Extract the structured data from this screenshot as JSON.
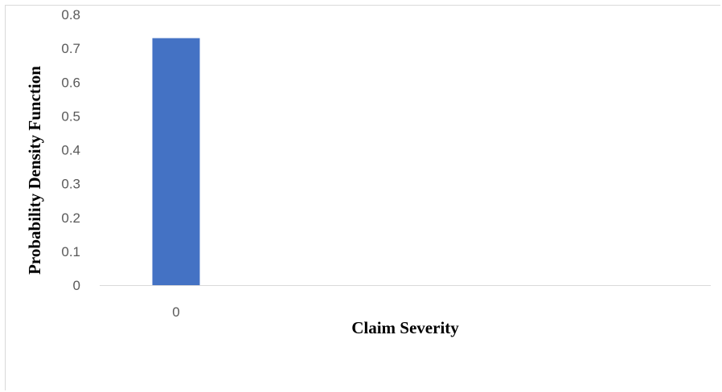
{
  "chart_data": {
    "type": "bar",
    "title": "",
    "xlabel": "Claim Severity",
    "ylabel": "Probability Density Function",
    "categories": [
      "0"
    ],
    "values": [
      0.73
    ],
    "ylim": [
      0,
      0.8
    ],
    "yticks": [
      "0",
      "0.1",
      "0.2",
      "0.3",
      "0.4",
      "0.5",
      "0.6",
      "0.7",
      "0.8"
    ],
    "grid": false,
    "legend": "none",
    "bar_color": "#4472C4",
    "axis_color": "#d9d9d9"
  }
}
